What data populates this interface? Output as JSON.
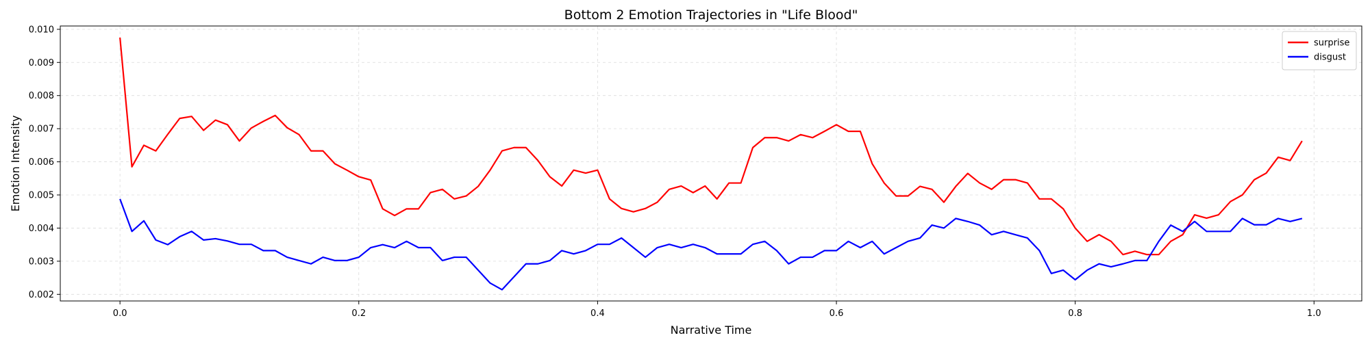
{
  "chart_data": {
    "type": "line",
    "title": "Bottom 2 Emotion Trajectories in \"Life Blood\"",
    "xlabel": "Narrative Time",
    "ylabel": "Emotion Intensity",
    "xlim": [
      -0.05,
      1.04
    ],
    "ylim": [
      0.0018,
      0.0101
    ],
    "xticks": [
      0.0,
      0.2,
      0.4,
      0.6,
      0.8,
      1.0
    ],
    "xtick_labels": [
      "0.0",
      "0.2",
      "0.4",
      "0.6",
      "0.8",
      "1.0"
    ],
    "yticks": [
      0.002,
      0.003,
      0.004,
      0.005,
      0.006,
      0.007,
      0.008,
      0.009,
      0.01
    ],
    "ytick_labels": [
      "0.002",
      "0.003",
      "0.004",
      "0.005",
      "0.006",
      "0.007",
      "0.008",
      "0.009",
      "0.010"
    ],
    "grid": true,
    "legend_position": "top-right",
    "x": [
      0.0,
      0.01,
      0.02,
      0.03,
      0.04,
      0.05,
      0.06,
      0.07,
      0.08,
      0.09,
      0.1,
      0.11,
      0.12,
      0.13,
      0.14,
      0.15,
      0.16,
      0.17,
      0.18,
      0.19,
      0.2,
      0.21,
      0.22,
      0.23,
      0.24,
      0.25,
      0.26,
      0.27,
      0.28,
      0.29,
      0.3,
      0.31,
      0.32,
      0.33,
      0.34,
      0.35,
      0.36,
      0.37,
      0.38,
      0.39,
      0.4,
      0.41,
      0.42,
      0.43,
      0.44,
      0.45,
      0.46,
      0.47,
      0.48,
      0.49,
      0.5,
      0.51,
      0.52,
      0.53,
      0.54,
      0.55,
      0.56,
      0.57,
      0.58,
      0.59,
      0.6,
      0.61,
      0.62,
      0.63,
      0.64,
      0.65,
      0.66,
      0.67,
      0.68,
      0.69,
      0.7,
      0.71,
      0.72,
      0.73,
      0.74,
      0.75,
      0.76,
      0.77,
      0.78,
      0.79,
      0.8,
      0.81,
      0.82,
      0.83,
      0.84,
      0.85,
      0.86,
      0.87,
      0.88,
      0.89,
      0.9,
      0.91,
      0.92,
      0.93,
      0.94,
      0.95,
      0.96,
      0.97,
      0.98,
      0.99
    ],
    "series": [
      {
        "name": "surprise",
        "color": "#ff0000",
        "values": [
          0.00975,
          0.00585,
          0.0065,
          0.00633,
          0.00683,
          0.00731,
          0.00737,
          0.00695,
          0.00726,
          0.00712,
          0.00663,
          0.00702,
          0.00722,
          0.0074,
          0.00703,
          0.00682,
          0.00633,
          0.00633,
          0.00594,
          0.00575,
          0.00555,
          0.00545,
          0.00458,
          0.00438,
          0.00458,
          0.00458,
          0.00507,
          0.00517,
          0.00488,
          0.00497,
          0.00526,
          0.00575,
          0.00633,
          0.00643,
          0.00643,
          0.00604,
          0.00555,
          0.00527,
          0.00575,
          0.00566,
          0.00575,
          0.00488,
          0.00459,
          0.00449,
          0.00459,
          0.00478,
          0.00517,
          0.00527,
          0.00507,
          0.00527,
          0.00488,
          0.00536,
          0.00536,
          0.00643,
          0.00673,
          0.00673,
          0.00663,
          0.00682,
          0.00673,
          0.00692,
          0.00712,
          0.00692,
          0.00692,
          0.00594,
          0.00536,
          0.00497,
          0.00497,
          0.00526,
          0.00517,
          0.00478,
          0.00526,
          0.00565,
          0.00536,
          0.00517,
          0.00546,
          0.00546,
          0.00536,
          0.00488,
          0.00488,
          0.00458,
          0.004,
          0.0036,
          0.0038,
          0.0036,
          0.0032,
          0.0033,
          0.0032,
          0.0032,
          0.0036,
          0.0038,
          0.0044,
          0.0043,
          0.0044,
          0.0048,
          0.005,
          0.00546,
          0.00566,
          0.00614,
          0.00604,
          0.00663
        ]
      },
      {
        "name": "disgust",
        "color": "#0000ff",
        "values": [
          0.00488,
          0.0039,
          0.00422,
          0.00364,
          0.0035,
          0.00374,
          0.0039,
          0.00364,
          0.00368,
          0.00361,
          0.00351,
          0.00351,
          0.00332,
          0.00332,
          0.00312,
          0.00302,
          0.00292,
          0.00312,
          0.00302,
          0.00302,
          0.00312,
          0.00341,
          0.0035,
          0.00341,
          0.0036,
          0.00341,
          0.00341,
          0.00302,
          0.00312,
          0.00312,
          0.00273,
          0.00234,
          0.00214,
          0.00253,
          0.00292,
          0.00292,
          0.00302,
          0.00332,
          0.00322,
          0.00332,
          0.00351,
          0.00351,
          0.0037,
          0.00341,
          0.00312,
          0.00341,
          0.00351,
          0.00341,
          0.00351,
          0.00341,
          0.00322,
          0.00322,
          0.00322,
          0.00351,
          0.0036,
          0.00332,
          0.00292,
          0.00312,
          0.00312,
          0.00332,
          0.00332,
          0.0036,
          0.00341,
          0.0036,
          0.00322,
          0.00341,
          0.0036,
          0.0037,
          0.00409,
          0.004,
          0.00429,
          0.0042,
          0.00409,
          0.0038,
          0.0039,
          0.0038,
          0.0037,
          0.00332,
          0.00263,
          0.00273,
          0.00244,
          0.00273,
          0.00292,
          0.00283,
          0.00292,
          0.00302,
          0.00302,
          0.0036,
          0.00409,
          0.0039,
          0.0042,
          0.0039,
          0.0039,
          0.0039,
          0.00429,
          0.0041,
          0.0041,
          0.00429,
          0.0042,
          0.00429
        ]
      }
    ]
  }
}
